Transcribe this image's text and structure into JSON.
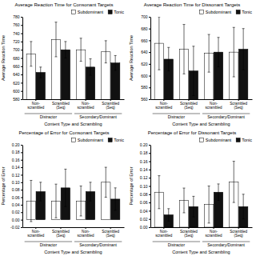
{
  "chart_data": [
    {
      "type": "bar",
      "title": "Average Reaction Time for Consonant Targets",
      "y_label": "Average Reaction Time",
      "x_label": "Content Type and Scrambling",
      "ylim": [
        580,
        780
      ],
      "yticks": [
        580,
        600,
        620,
        640,
        660,
        680,
        700,
        720,
        740,
        760,
        780
      ],
      "groups": [
        "Distractor",
        "Secondary/Dominant"
      ],
      "categories": [
        "Non-\nscrambled",
        "Scrambled\n(Seq)",
        "Non-\nscrambled",
        "Scrambled\n(Seq)"
      ],
      "series": [
        {
          "name": "Subdominant",
          "color": "#ffffff",
          "values": [
            690,
            725,
            700,
            695
          ],
          "errors": [
            30,
            42,
            28,
            27
          ]
        },
        {
          "name": "Tonic",
          "color": "#111111",
          "values": [
            645,
            700,
            658,
            668
          ],
          "errors": [
            13,
            20,
            20,
            18
          ]
        }
      ],
      "legend": "top",
      "grid": false
    },
    {
      "type": "bar",
      "title": "Average Reaction Time for Dissonant Targets",
      "y_label": "Average Reaction Time",
      "x_label": "Content Type and Scrambling",
      "ylim": [
        560,
        700
      ],
      "yticks": [
        560,
        580,
        600,
        620,
        640,
        660,
        680,
        700
      ],
      "groups": [
        "Distractor",
        "Secondary/Dominant"
      ],
      "categories": [
        "Non-\nscrambled",
        "Scrambled\n(Seq)",
        "Non-\nscrambled",
        "Scrambled\n(Seq)"
      ],
      "series": [
        {
          "name": "Subdominant",
          "color": "#ffffff",
          "values": [
            655,
            645,
            638,
            640
          ],
          "errors": [
            45,
            42,
            32,
            42
          ]
        },
        {
          "name": "Tonic",
          "color": "#111111",
          "values": [
            628,
            608,
            640,
            645
          ],
          "errors": [
            20,
            42,
            25,
            35
          ]
        }
      ],
      "legend": "top",
      "grid": false
    },
    {
      "type": "bar",
      "title": "Percentage of Error for Consonant Targets",
      "y_label": "Percentage of Error",
      "x_label": "Content Type and Scrambling",
      "ylim": [
        -0.02,
        0.2
      ],
      "yticks": [
        -0.02,
        {
          "value": 0.0,
          "label": "0.00"
        },
        0.02,
        0.04,
        0.06,
        0.08,
        {
          "value": 0.1,
          "label": "0.10"
        },
        0.12,
        0.14,
        0.16,
        0.18,
        {
          "value": 0.2,
          "label": "0.20"
        }
      ],
      "groups": [
        "Distractor",
        "Secondary/Dominant"
      ],
      "categories": [
        "Non-\nscrambled",
        "Scrambled\n(Seq)",
        "Non-\nscrambled",
        "Scrambled\n(Seq)"
      ],
      "series": [
        {
          "name": "Subdominant",
          "color": "#ffffff",
          "values": [
            0.05,
            0.05,
            0.05,
            0.1
          ],
          "errors": [
            0.055,
            0.045,
            0.04,
            0.04
          ]
        },
        {
          "name": "Tonic",
          "color": "#111111",
          "values": [
            0.075,
            0.085,
            0.075,
            0.055
          ],
          "errors": [
            0.025,
            0.05,
            0.025,
            0.03
          ]
        }
      ],
      "legend": "top",
      "grid": false
    },
    {
      "type": "bar",
      "title": "Percentage of Error for Dissonant Targets",
      "y_label": "Percentage of Error",
      "x_label": "Content Type and Scrambling",
      "ylim": [
        0,
        0.2
      ],
      "yticks": [
        {
          "value": 0.0,
          "label": "0.00"
        },
        0.02,
        0.04,
        0.06,
        0.08,
        {
          "value": 0.1,
          "label": "0.10"
        },
        0.12,
        0.14,
        0.16,
        0.18,
        {
          "value": 0.2,
          "label": "0.20"
        }
      ],
      "groups": [
        "Distractor",
        "Secondary/Dominant"
      ],
      "categories": [
        "Non-\nscrambled",
        "Scrambled\n(Seq)",
        "Non-\nscrambled",
        "Scrambled\n(Seq)"
      ],
      "series": [
        {
          "name": "Subdominant",
          "color": "#ffffff",
          "values": [
            0.085,
            0.065,
            0.055,
            0.11
          ],
          "errors": [
            0.04,
            0.03,
            0.045,
            0.05
          ]
        },
        {
          "name": "Tonic",
          "color": "#111111",
          "values": [
            0.03,
            0.05,
            0.085,
            0.05
          ],
          "errors": [
            0.015,
            0.025,
            0.02,
            0.03
          ]
        }
      ],
      "legend": "top",
      "grid": false
    }
  ]
}
